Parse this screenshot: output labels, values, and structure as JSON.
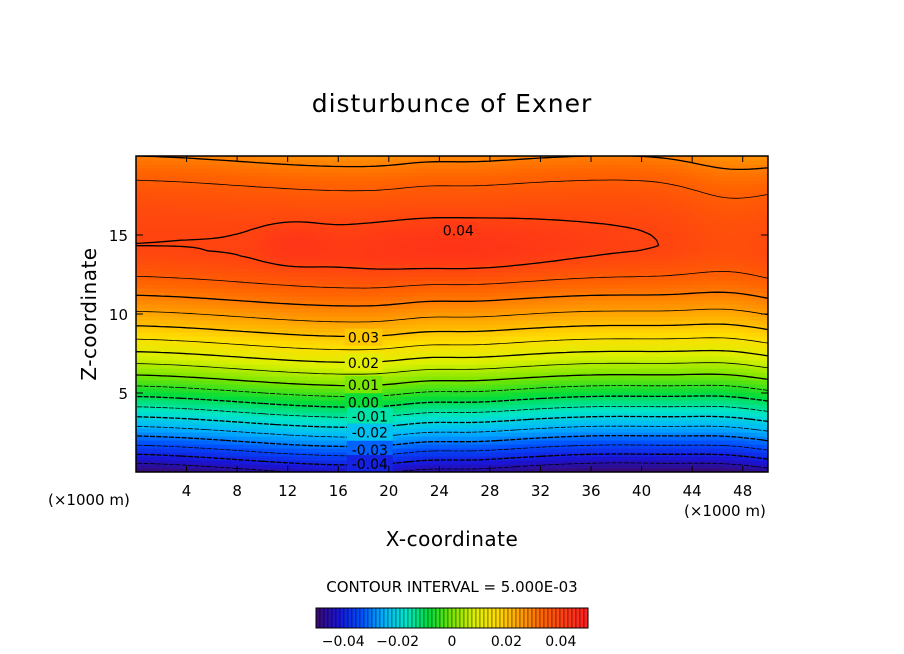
{
  "chart_data": {
    "type": "contour",
    "title": "disturbunce of Exner",
    "xlabel": "X-coordinate",
    "ylabel": "Z-coordinate",
    "x_unit": "(×1000 m)",
    "y_unit": "(×1000 m)",
    "xlim": [
      0,
      50
    ],
    "ylim": [
      0,
      20
    ],
    "x_ticks": [
      4,
      8,
      12,
      16,
      20,
      24,
      28,
      32,
      36,
      40,
      44,
      48
    ],
    "y_ticks": [
      5,
      10,
      15
    ],
    "contour_interval_text": "CONTOUR INTERVAL = 5.000E-03",
    "contour_labels": [
      {
        "text": "0.04",
        "x": 25.5,
        "z": 15.3
      },
      {
        "text": "0.03",
        "x": 18.0,
        "z": 8.5
      },
      {
        "text": "0.02",
        "x": 18.0,
        "z": 6.9
      },
      {
        "text": "0.01",
        "x": 18.0,
        "z": 5.5
      },
      {
        "text": "0.00",
        "x": 18.0,
        "z": 4.4
      },
      {
        "text": "-0.01",
        "x": 18.5,
        "z": 3.5
      },
      {
        "text": "-0.02",
        "x": 18.5,
        "z": 2.5
      },
      {
        "text": "-0.03",
        "x": 18.5,
        "z": 1.4
      },
      {
        "text": "-0.04",
        "x": 18.5,
        "z": 0.5
      }
    ],
    "contour_levels": [
      -0.045,
      -0.04,
      -0.035,
      -0.03,
      -0.025,
      -0.02,
      -0.015,
      -0.01,
      -0.005,
      0.0,
      0.005,
      0.01,
      0.015,
      0.02,
      0.025,
      0.03,
      0.035,
      0.04
    ],
    "colorbar": {
      "min": -0.05,
      "max": 0.05,
      "ticks": [
        {
          "value": -0.04,
          "label": "−0.04"
        },
        {
          "value": -0.02,
          "label": "−0.02"
        },
        {
          "value": 0,
          "label": "0"
        },
        {
          "value": 0.02,
          "label": "0.02"
        },
        {
          "value": 0.04,
          "label": "0.04"
        }
      ]
    },
    "colormap": [
      "#3a0a6a",
      "#1a14d8",
      "#0050ff",
      "#00b4ff",
      "#00e6c8",
      "#00dc3c",
      "#78e600",
      "#dcf000",
      "#ffdc00",
      "#ffa000",
      "#ff6400",
      "#ff3c14",
      "#ff2020"
    ],
    "negative_contours_dashed": true,
    "grid": false
  }
}
